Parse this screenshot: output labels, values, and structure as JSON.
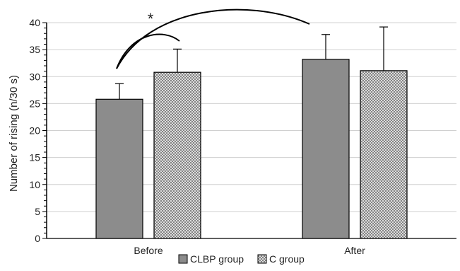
{
  "chart_data": {
    "type": "bar",
    "categories": [
      "Before",
      "After"
    ],
    "series": [
      {
        "name": "CLBP group",
        "values": [
          25.8,
          33.2
        ],
        "errors": [
          2.9,
          4.6
        ],
        "color": "#8c8c8c",
        "pattern": "solid"
      },
      {
        "name": "C group",
        "values": [
          30.8,
          31.1
        ],
        "errors": [
          4.3,
          8.1
        ],
        "color": "#8a8a8a",
        "pattern": "crosshatch"
      }
    ],
    "ylabel": "Number of rising (n/30 s)",
    "ylim": [
      0,
      40
    ],
    "yticks": [
      0,
      5,
      10,
      15,
      20,
      25,
      30,
      35,
      40
    ],
    "grid": true,
    "legend": "bottom",
    "annotation": "*"
  }
}
